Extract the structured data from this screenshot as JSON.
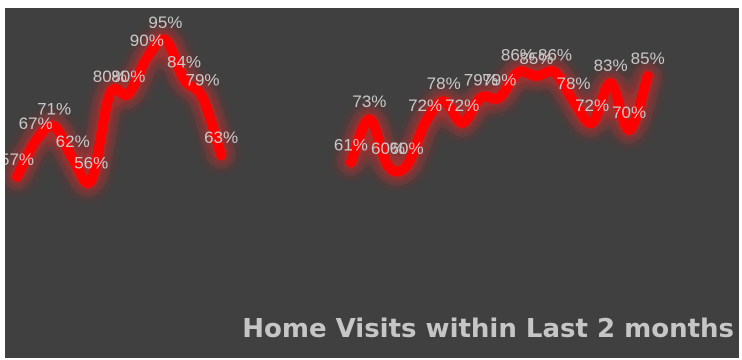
{
  "chart_data": {
    "type": "line",
    "title": "Home Visits within Last 2 months",
    "xlabel": "",
    "ylabel": "",
    "ylim": [
      50,
      100
    ],
    "grid": false,
    "legend": "none",
    "line_color": "#ff0000",
    "glow_color": "#ff2020",
    "background_color": "#404040",
    "series": [
      {
        "values": [
          57,
          67,
          71,
          62,
          56,
          80,
          80,
          90,
          95,
          84,
          79,
          63,
          null,
          null,
          null,
          null,
          null,
          null,
          61,
          73,
          60,
          60,
          72,
          78,
          72,
          79,
          79,
          86,
          85,
          86,
          78,
          72,
          83,
          70,
          85
        ],
        "labels": [
          "57%",
          "67%",
          "71%",
          "62%",
          "56%",
          "80%",
          "80%",
          "90%",
          "95%",
          "84%",
          "79%",
          "63%",
          "",
          "",
          "",
          "",
          "",
          "",
          "61%",
          "73%",
          "60%",
          "60%",
          "72%",
          "78%",
          "72%",
          "79%",
          "79%",
          "86%",
          "85%",
          "86%",
          "78%",
          "72%",
          "83%",
          "70%",
          "85%"
        ]
      }
    ]
  }
}
